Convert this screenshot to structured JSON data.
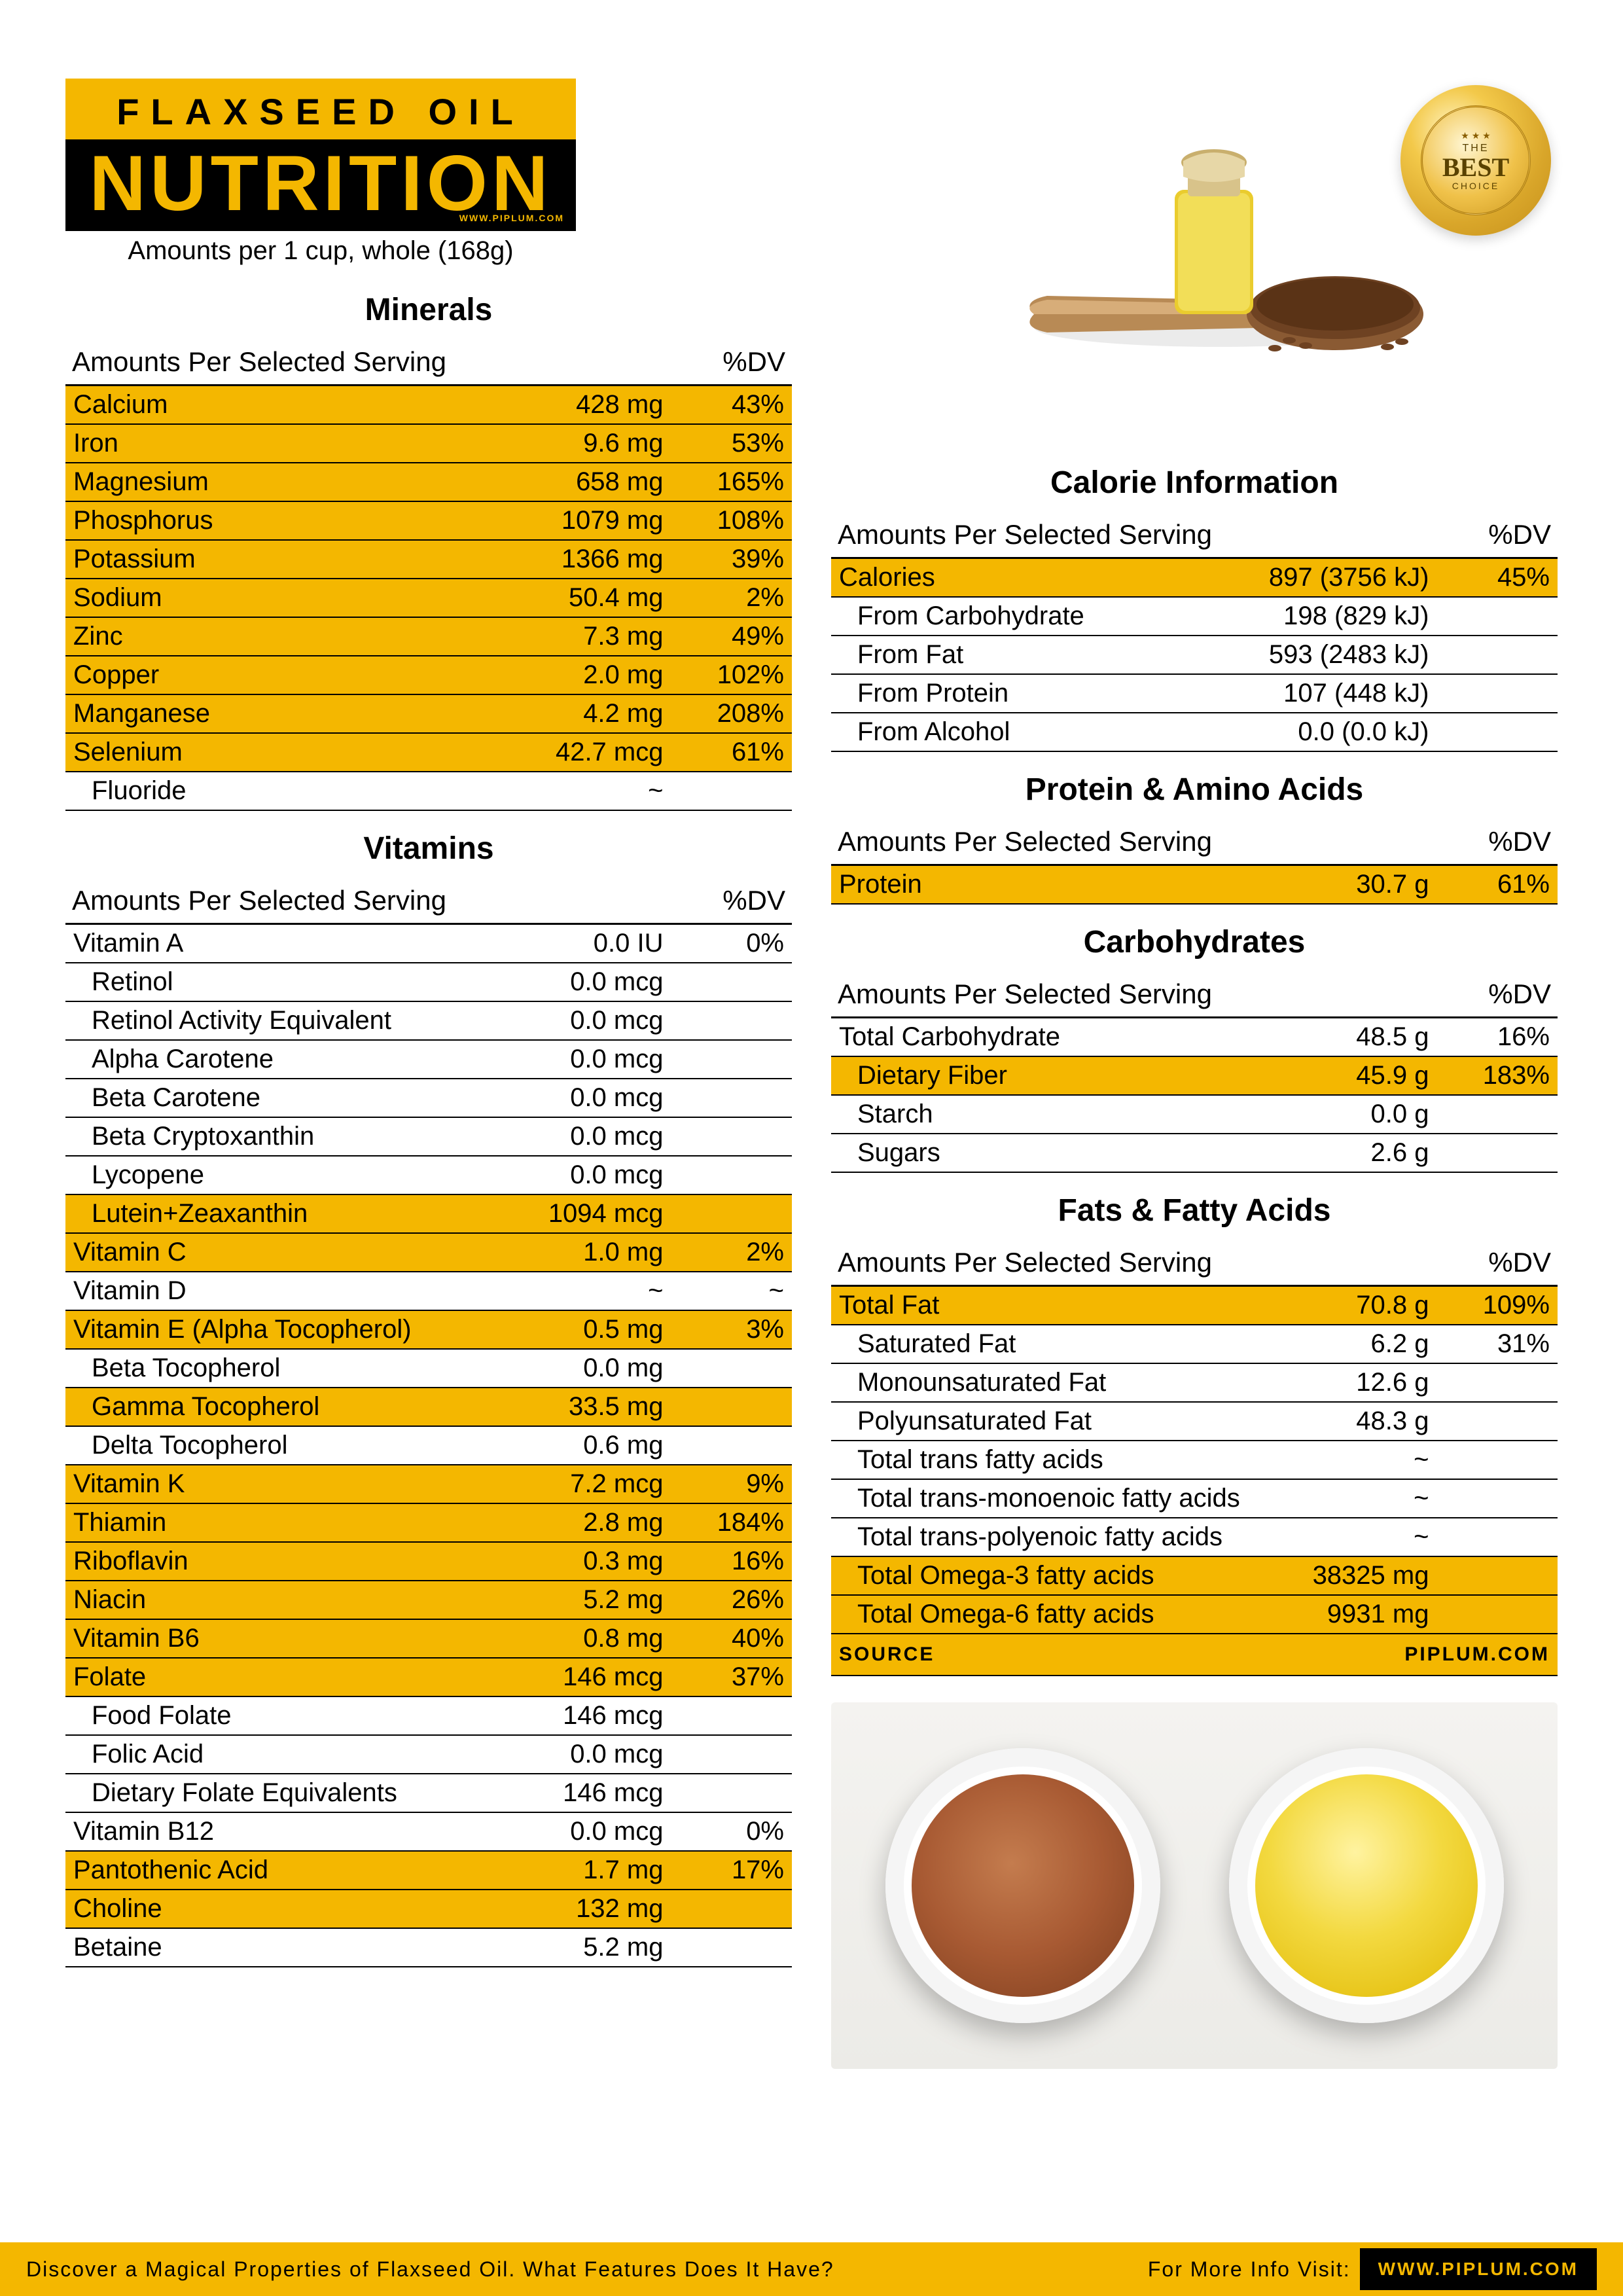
{
  "colors": {
    "accent": "#f4b700",
    "black": "#000000",
    "white": "#ffffff"
  },
  "title": {
    "line1": "FLAXSEED OIL",
    "line2": "NUTRITION",
    "url": "WWW.PIPLUM.COM",
    "subtitle": "Amounts per 1 cup, whole (168g)"
  },
  "badge": {
    "the": "THE",
    "best": "BEST",
    "choice": "CHOICE"
  },
  "tableHeader": {
    "col1": "Amounts Per Selected Serving",
    "col2": "%DV"
  },
  "minerals": {
    "title": "Minerals",
    "rows": [
      {
        "name": "Calcium",
        "amt": "428 mg",
        "dv": "43%",
        "hl": true
      },
      {
        "name": "Iron",
        "amt": "9.6 mg",
        "dv": "53%",
        "hl": true
      },
      {
        "name": "Magnesium",
        "amt": "658 mg",
        "dv": "165%",
        "hl": true
      },
      {
        "name": "Phosphorus",
        "amt": "1079 mg",
        "dv": "108%",
        "hl": true
      },
      {
        "name": "Potassium",
        "amt": "1366 mg",
        "dv": "39%",
        "hl": true
      },
      {
        "name": "Sodium",
        "amt": "50.4 mg",
        "dv": "2%",
        "hl": true
      },
      {
        "name": "Zinc",
        "amt": "7.3 mg",
        "dv": "49%",
        "hl": true
      },
      {
        "name": "Copper",
        "amt": "2.0 mg",
        "dv": "102%",
        "hl": true
      },
      {
        "name": "Manganese",
        "amt": "4.2 mg",
        "dv": "208%",
        "hl": true
      },
      {
        "name": "Selenium",
        "amt": "42.7 mcg",
        "dv": "61%",
        "hl": true
      },
      {
        "name": "Fluoride",
        "amt": "~",
        "dv": "",
        "hl": false,
        "indent": true
      }
    ]
  },
  "vitamins": {
    "title": "Vitamins",
    "rows": [
      {
        "name": "Vitamin A",
        "amt": "0.0 IU",
        "dv": "0%"
      },
      {
        "name": "Retinol",
        "amt": "0.0 mcg",
        "dv": "",
        "indent": true
      },
      {
        "name": "Retinol Activity Equivalent",
        "amt": "0.0 mcg",
        "dv": "",
        "indent": true
      },
      {
        "name": "Alpha Carotene",
        "amt": "0.0 mcg",
        "dv": "",
        "indent": true
      },
      {
        "name": "Beta Carotene",
        "amt": "0.0 mcg",
        "dv": "",
        "indent": true
      },
      {
        "name": "Beta Cryptoxanthin",
        "amt": "0.0 mcg",
        "dv": "",
        "indent": true
      },
      {
        "name": "Lycopene",
        "amt": "0.0 mcg",
        "dv": "",
        "indent": true
      },
      {
        "name": "Lutein+Zeaxanthin",
        "amt": "1094 mcg",
        "dv": "",
        "indent": true,
        "hl": true
      },
      {
        "name": "Vitamin C",
        "amt": "1.0 mg",
        "dv": "2%",
        "hl": true
      },
      {
        "name": "Vitamin D",
        "amt": "~",
        "dv": "~"
      },
      {
        "name": "Vitamin E (Alpha Tocopherol)",
        "amt": "0.5 mg",
        "dv": "3%",
        "hl": true
      },
      {
        "name": "Beta Tocopherol",
        "amt": "0.0 mg",
        "dv": "",
        "indent": true
      },
      {
        "name": "Gamma Tocopherol",
        "amt": "33.5 mg",
        "dv": "",
        "indent": true,
        "hl": true
      },
      {
        "name": "Delta Tocopherol",
        "amt": "0.6 mg",
        "dv": "",
        "indent": true
      },
      {
        "name": "Vitamin K",
        "amt": "7.2 mcg",
        "dv": "9%",
        "hl": true
      },
      {
        "name": "Thiamin",
        "amt": "2.8 mg",
        "dv": "184%",
        "hl": true
      },
      {
        "name": "Riboflavin",
        "amt": "0.3 mg",
        "dv": "16%",
        "hl": true
      },
      {
        "name": "Niacin",
        "amt": "5.2 mg",
        "dv": "26%",
        "hl": true
      },
      {
        "name": "Vitamin B6",
        "amt": "0.8 mg",
        "dv": "40%",
        "hl": true
      },
      {
        "name": "Folate",
        "amt": "146 mcg",
        "dv": "37%",
        "hl": true
      },
      {
        "name": "Food Folate",
        "amt": "146 mcg",
        "dv": "",
        "indent": true
      },
      {
        "name": "Folic Acid",
        "amt": "0.0 mcg",
        "dv": "",
        "indent": true
      },
      {
        "name": "Dietary Folate Equivalents",
        "amt": "146 mcg",
        "dv": "",
        "indent": true
      },
      {
        "name": "Vitamin B12",
        "amt": "0.0 mcg",
        "dv": "0%"
      },
      {
        "name": "Pantothenic Acid",
        "amt": "1.7 mg",
        "dv": "17%",
        "hl": true
      },
      {
        "name": "Choline",
        "amt": "132 mg",
        "dv": "",
        "hl": true
      },
      {
        "name": "Betaine",
        "amt": "5.2 mg",
        "dv": ""
      }
    ]
  },
  "calories": {
    "title": "Calorie Information",
    "rows": [
      {
        "name": "Calories",
        "amt": "897 (3756 kJ)",
        "dv": "45%",
        "hl": true
      },
      {
        "name": "From Carbohydrate",
        "amt": "198 (829 kJ)",
        "dv": "",
        "indent": true
      },
      {
        "name": "From Fat",
        "amt": "593 (2483 kJ)",
        "dv": "",
        "indent": true
      },
      {
        "name": "From Protein",
        "amt": "107 (448 kJ)",
        "dv": "",
        "indent": true
      },
      {
        "name": "From Alcohol",
        "amt": "0.0 (0.0 kJ)",
        "dv": "",
        "indent": true
      }
    ]
  },
  "protein": {
    "title": "Protein & Amino Acids",
    "rows": [
      {
        "name": "Protein",
        "amt": "30.7 g",
        "dv": "61%",
        "hl": true
      }
    ]
  },
  "carbs": {
    "title": "Carbohydrates",
    "rows": [
      {
        "name": "Total Carbohydrate",
        "amt": "48.5 g",
        "dv": "16%"
      },
      {
        "name": "Dietary Fiber",
        "amt": "45.9 g",
        "dv": "183%",
        "hl": true,
        "indent": true
      },
      {
        "name": "Starch",
        "amt": "0.0 g",
        "dv": "",
        "indent": true
      },
      {
        "name": "Sugars",
        "amt": "2.6 g",
        "dv": "",
        "indent": true
      }
    ]
  },
  "fats": {
    "title": "Fats & Fatty Acids",
    "rows": [
      {
        "name": "Total Fat",
        "amt": "70.8 g",
        "dv": "109%",
        "hl": true
      },
      {
        "name": "Saturated Fat",
        "amt": "6.2 g",
        "dv": "31%",
        "indent": true
      },
      {
        "name": "Monounsaturated Fat",
        "amt": "12.6 g",
        "dv": "",
        "indent": true
      },
      {
        "name": "Polyunsaturated Fat",
        "amt": "48.3 g",
        "dv": "",
        "indent": true
      },
      {
        "name": "Total trans fatty acids",
        "amt": "~",
        "dv": "",
        "indent": true
      },
      {
        "name": "Total trans-monoenoic fatty acids",
        "amt": "~",
        "dv": "",
        "indent": true
      },
      {
        "name": "Total trans-polyenoic fatty acids",
        "amt": "~",
        "dv": "",
        "indent": true
      },
      {
        "name": "Total Omega-3 fatty acids",
        "amt": "38325 mg",
        "dv": "",
        "hl": true,
        "indent": true
      },
      {
        "name": "Total Omega-6 fatty acids",
        "amt": "9931 mg",
        "dv": "",
        "hl": true,
        "indent": true
      }
    ],
    "source": {
      "label": "SOURCE",
      "value": "PIPLUM.COM"
    }
  },
  "footer": {
    "tagline": "Discover a Magical Properties of Flaxseed Oil. What Features Does It Have?",
    "visit": "For More Info Visit:",
    "url": "WWW.PIPLUM.COM"
  }
}
